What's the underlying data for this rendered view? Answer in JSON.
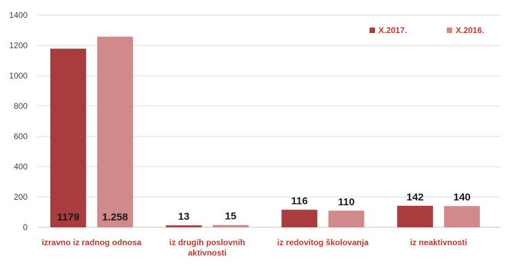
{
  "chart_data": {
    "type": "bar",
    "categories": [
      [
        "izravno iz radnog odnosa"
      ],
      [
        "iz drugih poslovnih",
        "aktivnosti"
      ],
      [
        "iz redovitog školovanja"
      ],
      [
        "iz neaktivnosti"
      ]
    ],
    "series": [
      {
        "name": "X.2017.",
        "color": "#a83c3e",
        "values": [
          1179,
          13,
          116,
          142
        ],
        "labels": [
          "1179",
          "13",
          "116",
          "142"
        ]
      },
      {
        "name": "X.2016.",
        "color": "#d08a8c",
        "values": [
          1258,
          15,
          110,
          140
        ],
        "labels": [
          "1.258",
          "15",
          "110",
          "140"
        ]
      }
    ],
    "ylim": [
      0,
      1400
    ],
    "yticks": [
      0,
      200,
      400,
      600,
      800,
      1000,
      1200,
      1400
    ],
    "grid": true,
    "legend_position": "top-right",
    "label_color": "#c0392b"
  }
}
